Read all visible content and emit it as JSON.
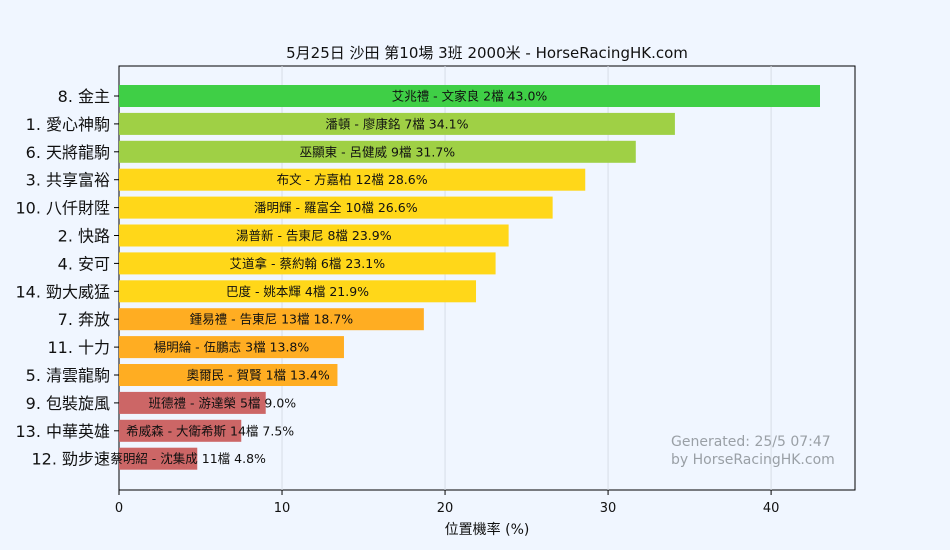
{
  "chart_data": {
    "type": "bar",
    "orientation": "horizontal",
    "title": "5月25日  沙田  第10場  3班  2000米 - HorseRacingHK.com",
    "xlabel": "位置機率 (%)",
    "xlim": [
      0,
      45
    ],
    "xticks": [
      0,
      10,
      20,
      30,
      40
    ],
    "grid": true,
    "categories": [
      "8. 金主",
      "1. 愛心神駒",
      "6. 天將龍駒",
      "3. 共享富裕",
      "10. 八仟財陞",
      "2. 快路",
      "4. 安可",
      "14. 勁大威猛",
      "7. 奔放",
      "11. 十力",
      "5. 清雲龍駒",
      "9. 包裝旋風",
      "13. 中華英雄",
      "12. 勁步速"
    ],
    "values": [
      43.0,
      34.1,
      31.7,
      28.6,
      26.6,
      23.9,
      23.1,
      21.9,
      18.7,
      13.8,
      13.4,
      9.0,
      7.5,
      4.8
    ],
    "bar_labels": [
      "艾兆禮 - 文家良 2檔  43.0%",
      "潘頓 - 廖康銘 7檔  34.1%",
      "巫顯東 - 呂健威 9檔  31.7%",
      "布文 - 方嘉柏 12檔  28.6%",
      "潘明輝 - 羅富全 10檔  26.6%",
      "湯普新 - 告東尼 8檔  23.9%",
      "艾道拿 - 蔡約翰 6檔  23.1%",
      "巴度 - 姚本輝 4檔  21.9%",
      "鍾易禮 - 告東尼 13檔  18.7%",
      "楊明綸 - 伍鵬志 3檔  13.8%",
      "奧爾民 - 賀賢 1檔  13.4%",
      "班德禮 - 游達榮 5檔  9.0%",
      "希威森 - 大衛希斯 14檔  7.5%",
      "蔡明紹 - 沈集成 11檔  4.8%"
    ],
    "colors": [
      "#3fcf46",
      "#9fd045",
      "#9fd045",
      "#ffd719",
      "#ffd719",
      "#ffd719",
      "#ffd719",
      "#ffd719",
      "#ffad22",
      "#ffad22",
      "#ffad22",
      "#cc6666",
      "#cc6666",
      "#cc6666"
    ],
    "watermark": [
      "Generated: 25/5 07:47",
      "by HorseRacingHK.com"
    ]
  }
}
